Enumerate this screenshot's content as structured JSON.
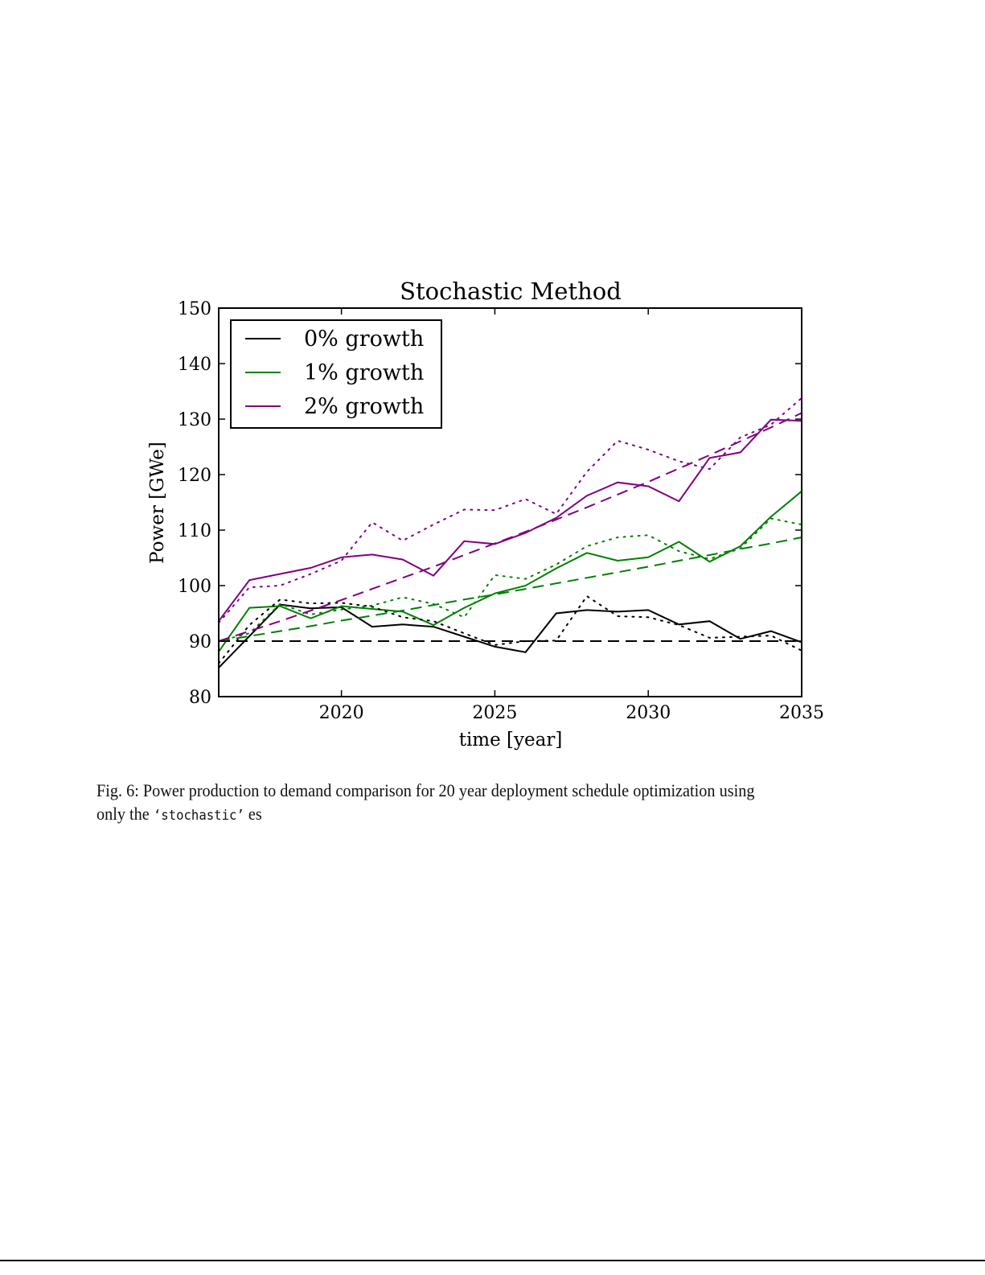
{
  "chart_data": {
    "type": "line",
    "title": "Stochastic Method",
    "xlabel": "time [year]",
    "ylabel": "Power [GWe]",
    "xlim": [
      2016,
      2035
    ],
    "ylim": [
      80,
      150
    ],
    "xticks": [
      2020,
      2025,
      2030,
      2035
    ],
    "yticks": [
      80,
      90,
      100,
      110,
      120,
      130,
      140,
      150
    ],
    "grid": false,
    "legend_position": "top-left",
    "x": [
      2016,
      2017,
      2018,
      2019,
      2020,
      2021,
      2022,
      2023,
      2024,
      2025,
      2026,
      2027,
      2028,
      2029,
      2030,
      2031,
      2032,
      2033,
      2034,
      2035
    ],
    "series": [
      {
        "name": "0% growth",
        "color": "#000000",
        "style": "solid",
        "values": [
          85.2,
          90.9,
          96.6,
          95.9,
          96.1,
          92.6,
          93.0,
          92.6,
          90.8,
          89.0,
          88.0,
          95.0,
          95.6,
          95.3,
          95.6,
          93.0,
          93.6,
          90.4,
          91.8,
          89.8
        ]
      },
      {
        "name": "1% growth",
        "color": "#008000",
        "style": "solid",
        "values": [
          88.1,
          96.0,
          96.3,
          94.1,
          96.3,
          95.8,
          95.3,
          92.9,
          96.0,
          98.6,
          100.0,
          103.1,
          105.9,
          104.5,
          105.1,
          107.9,
          104.3,
          107.1,
          112.4,
          117.0
        ]
      },
      {
        "name": "2% growth",
        "color": "#800080",
        "style": "solid",
        "values": [
          93.6,
          101.0,
          102.1,
          103.2,
          105.1,
          105.6,
          104.7,
          101.8,
          108.0,
          107.5,
          109.5,
          112.2,
          116.2,
          118.6,
          117.9,
          115.2,
          123.0,
          124.0,
          129.9,
          129.7
        ]
      },
      {
        "color": "#000000",
        "style": "dotted",
        "values": [
          86.0,
          92.9,
          97.5,
          96.8,
          96.9,
          96.2,
          94.3,
          93.6,
          91.4,
          89.3,
          90.0,
          90.1,
          98.1,
          94.5,
          94.3,
          92.9,
          90.6,
          90.8,
          91.0,
          88.3
        ]
      },
      {
        "color": "#008000",
        "style": "dotted",
        "values": [
          90.0,
          91.4,
          96.7,
          94.8,
          95.7,
          96.4,
          97.9,
          96.7,
          94.3,
          101.9,
          101.2,
          103.8,
          107.1,
          108.7,
          109.1,
          106.2,
          104.8,
          106.7,
          112.1,
          111.0
        ]
      },
      {
        "color": "#800080",
        "style": "dotted",
        "values": [
          93.3,
          99.7,
          100.0,
          102.1,
          104.5,
          111.4,
          108.1,
          111.0,
          113.7,
          113.6,
          115.6,
          112.9,
          120.5,
          126.1,
          124.5,
          122.4,
          121.0,
          126.7,
          129.0,
          133.8
        ]
      },
      {
        "color": "#000000",
        "style": "dashed",
        "values": [
          90,
          90,
          90,
          90,
          90,
          90,
          90,
          90,
          90,
          90,
          90,
          90,
          90,
          90,
          90,
          90,
          90,
          90,
          90,
          90
        ]
      },
      {
        "color": "#008000",
        "style": "dashed",
        "values": [
          90.0,
          90.9,
          91.8,
          92.7,
          93.7,
          94.6,
          95.5,
          96.5,
          97.5,
          98.4,
          99.4,
          100.4,
          101.4,
          102.4,
          103.4,
          104.5,
          105.5,
          106.6,
          107.6,
          108.7
        ]
      },
      {
        "color": "#800080",
        "style": "dashed",
        "values": [
          90.0,
          91.8,
          93.6,
          95.5,
          97.4,
          99.4,
          101.4,
          103.4,
          105.5,
          107.6,
          109.7,
          111.9,
          114.1,
          116.4,
          118.7,
          121.1,
          123.5,
          126.0,
          128.5,
          131.1
        ]
      }
    ]
  },
  "caption": {
    "prefix": "Fig. 6: Power production to demand comparison for 20 year deployment schedule optimization using",
    "line2_start": "only the ",
    "code": "‘stochastic’",
    "line2_end": " es"
  }
}
